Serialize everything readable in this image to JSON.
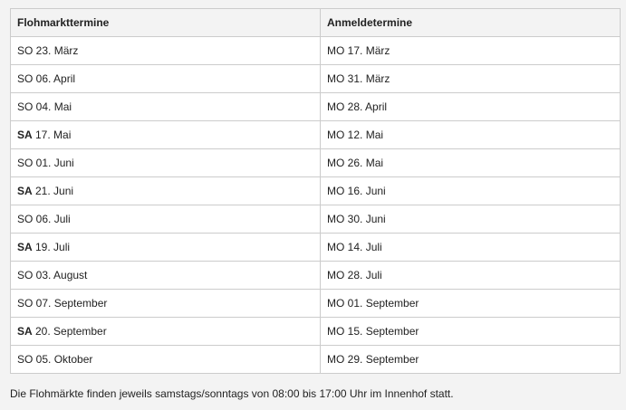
{
  "table": {
    "headers": [
      "Flohmarkttermine",
      "Anmeldetermine"
    ],
    "rows": [
      {
        "market_day": "SO",
        "market_date": " 23. März",
        "reg_day": "MO",
        "reg_date": " 17. März",
        "bold": false
      },
      {
        "market_day": "SO",
        "market_date": " 06. April",
        "reg_day": "MO",
        "reg_date": " 31. März",
        "bold": false
      },
      {
        "market_day": "SO",
        "market_date": " 04. Mai",
        "reg_day": "MO",
        "reg_date": " 28. April",
        "bold": false
      },
      {
        "market_day": "SA",
        "market_date": " 17. Mai",
        "reg_day": "MO",
        "reg_date": " 12. Mai",
        "bold": true
      },
      {
        "market_day": "SO",
        "market_date": " 01. Juni",
        "reg_day": "MO",
        "reg_date": " 26. Mai",
        "bold": false
      },
      {
        "market_day": "SA",
        "market_date": " 21. Juni",
        "reg_day": "MO",
        "reg_date": " 16. Juni",
        "bold": true
      },
      {
        "market_day": "SO",
        "market_date": " 06. Juli",
        "reg_day": "MO",
        "reg_date": " 30. Juni",
        "bold": false
      },
      {
        "market_day": "SA",
        "market_date": " 19. Juli",
        "reg_day": "MO",
        "reg_date": " 14. Juli",
        "bold": true
      },
      {
        "market_day": "SO",
        "market_date": " 03. August",
        "reg_day": "MO",
        "reg_date": " 28. Juli",
        "bold": false
      },
      {
        "market_day": "SO",
        "market_date": " 07. September",
        "reg_day": "MO",
        "reg_date": " 01. September",
        "bold": false
      },
      {
        "market_day": "SA",
        "market_date": " 20. September",
        "reg_day": "MO",
        "reg_date": " 15. September",
        "bold": true
      },
      {
        "market_day": "SO",
        "market_date": " 05. Oktober",
        "reg_day": "MO",
        "reg_date": " 29. September",
        "bold": false
      }
    ]
  },
  "note": "Die Flohmärkte finden jeweils samstags/sonntags von 08:00 bis 17:00 Uhr im Innenhof statt."
}
